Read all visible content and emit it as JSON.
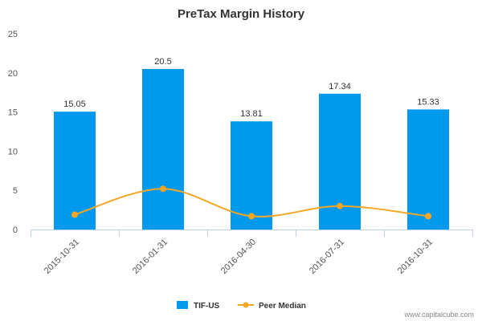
{
  "chart_data": {
    "type": "bar",
    "title": "PreTax Margin History",
    "categories": [
      "2015-10-31",
      "2016-01-31",
      "2016-04-30",
      "2016-07-31",
      "2016-10-31"
    ],
    "ylim": [
      0,
      25
    ],
    "yticks": [
      "0",
      "5",
      "10",
      "15",
      "20",
      "25"
    ],
    "grid": false,
    "legend_position": "bottom",
    "series": [
      {
        "name": "TIF-US",
        "kind": "bar",
        "color": "#0099ee",
        "values": [
          15.05,
          20.5,
          13.81,
          17.34,
          15.33
        ],
        "labels": [
          "15.05",
          "20.5",
          "13.81",
          "17.34",
          "15.33"
        ]
      },
      {
        "name": "Peer Median",
        "kind": "line",
        "color": "#f5a623",
        "values": [
          1.9,
          5.2,
          1.7,
          3.0,
          1.7
        ]
      }
    ]
  },
  "credit": "www.capitalcube.com"
}
